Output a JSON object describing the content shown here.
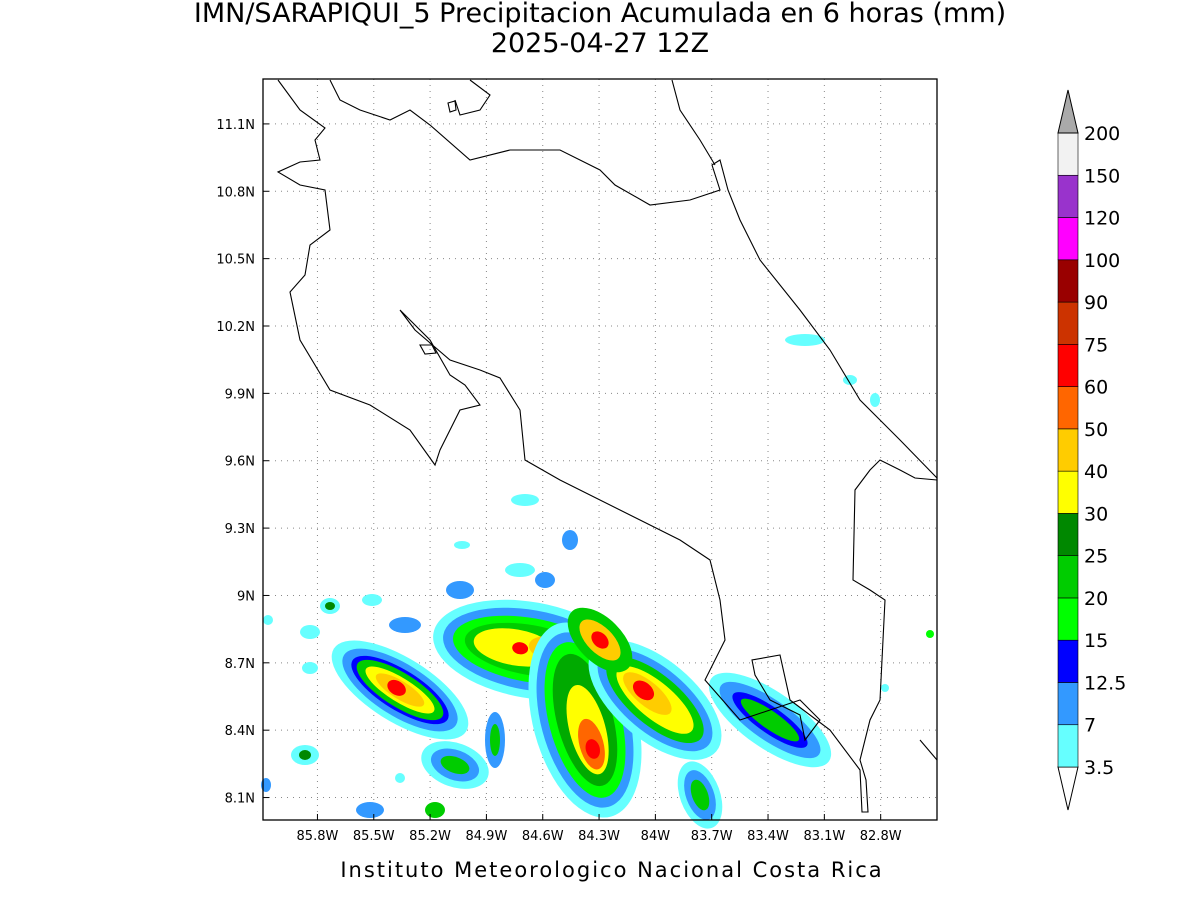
{
  "map": {
    "title": "IMN/SARAPIQUI_5 Precipitacion Acumulada en 6 horas (mm)",
    "subtitle": "2025-04-27 12Z",
    "footer": "Instituto Meteorologico Nacional Costa Rica",
    "lonlim": [
      -86.09,
      -82.5
    ],
    "latlim": [
      8.0,
      11.3
    ],
    "lon_ticks": [
      {
        "value": -85.8,
        "label": "85.8W"
      },
      {
        "value": -85.5,
        "label": "85.5W"
      },
      {
        "value": -85.2,
        "label": "85.2W"
      },
      {
        "value": -84.9,
        "label": "84.9W"
      },
      {
        "value": -84.6,
        "label": "84.6W"
      },
      {
        "value": -84.3,
        "label": "84.3W"
      },
      {
        "value": -84.0,
        "label": "84W"
      },
      {
        "value": -83.7,
        "label": "83.7W"
      },
      {
        "value": -83.4,
        "label": "83.4W"
      },
      {
        "value": -83.1,
        "label": "83.1W"
      },
      {
        "value": -82.8,
        "label": "82.8W"
      }
    ],
    "lat_ticks": [
      {
        "value": 8.1,
        "label": "8.1N"
      },
      {
        "value": 8.4,
        "label": "8.4N"
      },
      {
        "value": 8.7,
        "label": "8.7N"
      },
      {
        "value": 9.0,
        "label": "9N"
      },
      {
        "value": 9.3,
        "label": "9.3N"
      },
      {
        "value": 9.6,
        "label": "9.6N"
      },
      {
        "value": 9.9,
        "label": "9.9N"
      },
      {
        "value": 10.2,
        "label": "10.2N"
      },
      {
        "value": 10.5,
        "label": "10.5N"
      },
      {
        "value": 10.8,
        "label": "10.8N"
      },
      {
        "value": 11.1,
        "label": "11.1N"
      }
    ],
    "grid": true,
    "colorbar": {
      "levels": [
        3.5,
        7,
        12.5,
        15,
        20,
        25,
        30,
        40,
        50,
        60,
        75,
        90,
        100,
        120,
        150,
        200
      ],
      "colors": [
        "#ffffff",
        "#66ffff",
        "#3399ff",
        "#0000ff",
        "#00ff00",
        "#00cc00",
        "#008800",
        "#ffff00",
        "#ffcc00",
        "#ff6600",
        "#ff0000",
        "#cc3300",
        "#990000",
        "#ff00ff",
        "#9933cc",
        "#f2f2f2",
        "#aaaaaa"
      ]
    }
  }
}
